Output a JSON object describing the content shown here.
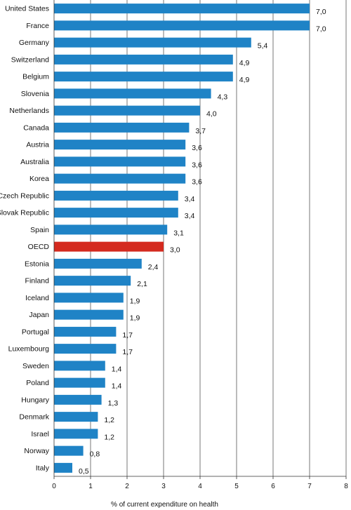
{
  "chart_data": {
    "type": "bar",
    "orientation": "horizontal",
    "categories": [
      "United States",
      "France",
      "Germany",
      "Switzerland",
      "Belgium",
      "Slovenia",
      "Netherlands",
      "Canada",
      "Austria",
      "Australia",
      "Korea",
      "Czech Republic",
      "Slovak Republic",
      "Spain",
      "OECD",
      "Estonia",
      "Finland",
      "Iceland",
      "Japan",
      "Portugal",
      "Luxembourg",
      "Sweden",
      "Poland",
      "Hungary",
      "Denmark",
      "Israel",
      "Norway",
      "Italy"
    ],
    "values": [
      7.0,
      7.0,
      5.4,
      4.9,
      4.9,
      4.3,
      4.0,
      3.7,
      3.6,
      3.6,
      3.6,
      3.4,
      3.4,
      3.1,
      3.0,
      2.4,
      2.1,
      1.9,
      1.9,
      1.7,
      1.7,
      1.4,
      1.4,
      1.3,
      1.2,
      1.2,
      0.8,
      0.5
    ],
    "value_labels": [
      "7,0",
      "7,0",
      "5,4",
      "4,9",
      "4,9",
      "4,3",
      "4,0",
      "3,7",
      "3,6",
      "3,6",
      "3,6",
      "3,4",
      "3,4",
      "3,1",
      "3,0",
      "2,4",
      "2,1",
      "1,9",
      "1,9",
      "1,7",
      "1,7",
      "1,4",
      "1,4",
      "1,3",
      "1,2",
      "1,2",
      "0,8",
      "0,5"
    ],
    "highlight_category": "OECD",
    "bar_color": "#1f83c6",
    "highlight_color": "#d42a1f",
    "xlabel": "% of current expenditure on health",
    "xlim": [
      0,
      8
    ],
    "xticks": [
      0,
      1,
      2,
      3,
      4,
      5,
      6,
      7,
      8
    ],
    "grid": "vertical"
  }
}
